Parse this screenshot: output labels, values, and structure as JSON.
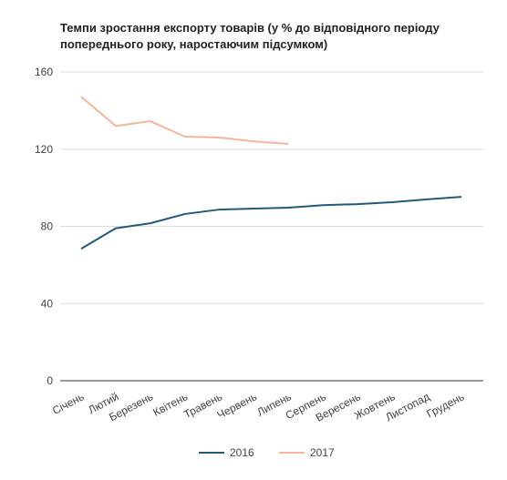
{
  "chart_data": {
    "type": "line",
    "title": "Темпи зростання експорту товарів (у % до відповідного періоду попереднього року, наростаючим підсумком)",
    "categories": [
      "Січень",
      "Лютий",
      "Березень",
      "Квітень",
      "Травень",
      "Червень",
      "Липень",
      "Серпень",
      "Вересень",
      "Жовтень",
      "Листопад",
      "Грудень"
    ],
    "series": [
      {
        "name": "2016",
        "color": "#215a78",
        "values": [
          68.4,
          79,
          81.6,
          86.4,
          88.7,
          89.2,
          89.7,
          91,
          91.5,
          92.5,
          94,
          95.3
        ]
      },
      {
        "name": "2017",
        "color": "#f8b49a",
        "values": [
          147.2,
          132,
          134.5,
          126.5,
          126,
          124,
          122.7,
          null,
          null,
          null,
          null,
          null
        ]
      }
    ],
    "ylim": [
      0,
      160
    ],
    "yticks": [
      0,
      40,
      80,
      120,
      160
    ],
    "grid": true,
    "legend": "bottom"
  }
}
